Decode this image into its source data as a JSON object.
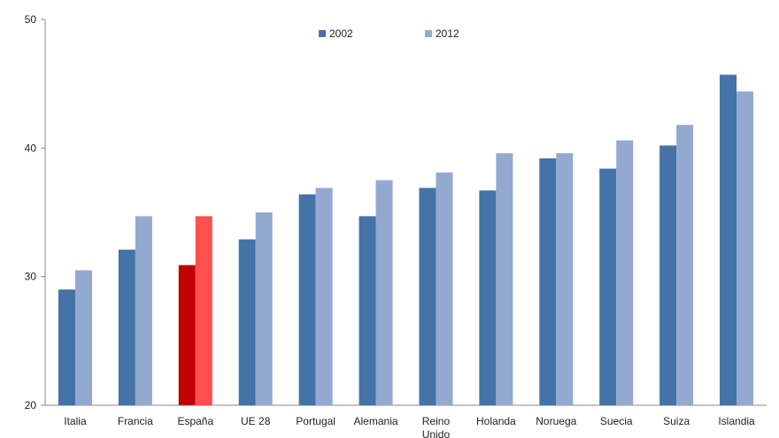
{
  "chart_data": {
    "type": "bar",
    "categories": [
      "Italia",
      "Francia",
      "España",
      "UE 28",
      "Portugal",
      "Alemania",
      "Reino Unido",
      "Holanda",
      "Noruega",
      "Suecia",
      "Suiza",
      "Islandia"
    ],
    "series": [
      {
        "name": "2002",
        "values": [
          29.0,
          32.1,
          30.9,
          32.9,
          36.4,
          34.7,
          36.9,
          36.7,
          39.2,
          38.4,
          40.2,
          45.7
        ],
        "color": "#4572a7"
      },
      {
        "name": "2012",
        "values": [
          30.5,
          34.7,
          34.7,
          35.0,
          36.9,
          37.5,
          38.1,
          39.6,
          39.6,
          40.6,
          41.8,
          44.4
        ],
        "color": "#93a9cf"
      }
    ],
    "highlight": {
      "category": "España",
      "colors": [
        "#c00000",
        "#ff5050"
      ]
    },
    "yticks": [
      20,
      30,
      40,
      50
    ],
    "ylim": [
      20,
      50
    ],
    "grid": false,
    "legend_position": "top-center"
  }
}
